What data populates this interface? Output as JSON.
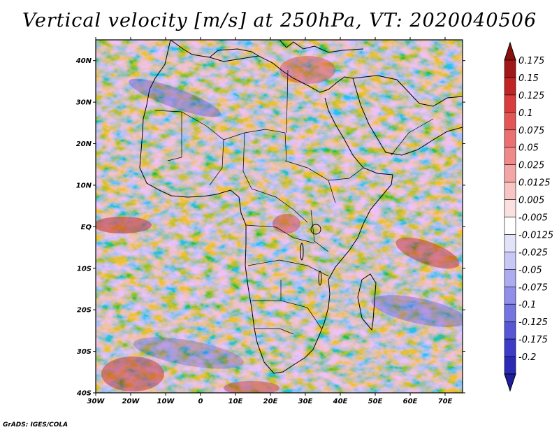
{
  "title": "Vertical velocity [m/s] at 250hPa, VT: 2020040506",
  "credit": "GrADS: IGES/COLA",
  "map": {
    "lon_range": [
      -30,
      75
    ],
    "lat_range": [
      -40,
      45
    ],
    "x_ticks": [
      {
        "value": -30,
        "label": "30W"
      },
      {
        "value": -20,
        "label": "20W"
      },
      {
        "value": -10,
        "label": "10W"
      },
      {
        "value": 0,
        "label": "0"
      },
      {
        "value": 10,
        "label": "10E"
      },
      {
        "value": 20,
        "label": "20E"
      },
      {
        "value": 30,
        "label": "30E"
      },
      {
        "value": 40,
        "label": "40E"
      },
      {
        "value": 50,
        "label": "50E"
      },
      {
        "value": 60,
        "label": "60E"
      },
      {
        "value": 70,
        "label": "70E"
      }
    ],
    "y_ticks": [
      {
        "value": 40,
        "label": "40N"
      },
      {
        "value": 30,
        "label": "30N"
      },
      {
        "value": 20,
        "label": "20N"
      },
      {
        "value": 10,
        "label": "10N"
      },
      {
        "value": 0,
        "label": "EQ"
      },
      {
        "value": -10,
        "label": "10S"
      },
      {
        "value": -20,
        "label": "20S"
      },
      {
        "value": -30,
        "label": "30S"
      },
      {
        "value": -40,
        "label": "40S"
      }
    ]
  },
  "colorbar": {
    "levels": [
      {
        "label": "0.175",
        "color": "#a01818"
      },
      {
        "label": "0.15",
        "color": "#c02424"
      },
      {
        "label": "0.125",
        "color": "#d83c3c"
      },
      {
        "label": "0.1",
        "color": "#e45656"
      },
      {
        "label": "0.075",
        "color": "#ec7070"
      },
      {
        "label": "0.05",
        "color": "#f08a8a"
      },
      {
        "label": "0.025",
        "color": "#f4a6a6"
      },
      {
        "label": "0.0125",
        "color": "#f8c4c4"
      },
      {
        "label": "0.005",
        "color": "#fbe0e0"
      },
      {
        "label": "-0.005",
        "color": "#ffffff"
      },
      {
        "label": "-0.0125",
        "color": "#e2e2fa"
      },
      {
        "label": "-0.025",
        "color": "#c8c8f6"
      },
      {
        "label": "-0.05",
        "color": "#acacf0"
      },
      {
        "label": "-0.075",
        "color": "#9090ea"
      },
      {
        "label": "-0.1",
        "color": "#7474e2"
      },
      {
        "label": "-0.125",
        "color": "#5656d6"
      },
      {
        "label": "-0.175",
        "color": "#3c3cc8"
      },
      {
        "label": "-0.2",
        "color": "#2a2ab4"
      }
    ],
    "top_arrow_color": "#8a1010",
    "bottom_arrow_color": "#1e1e9e"
  }
}
